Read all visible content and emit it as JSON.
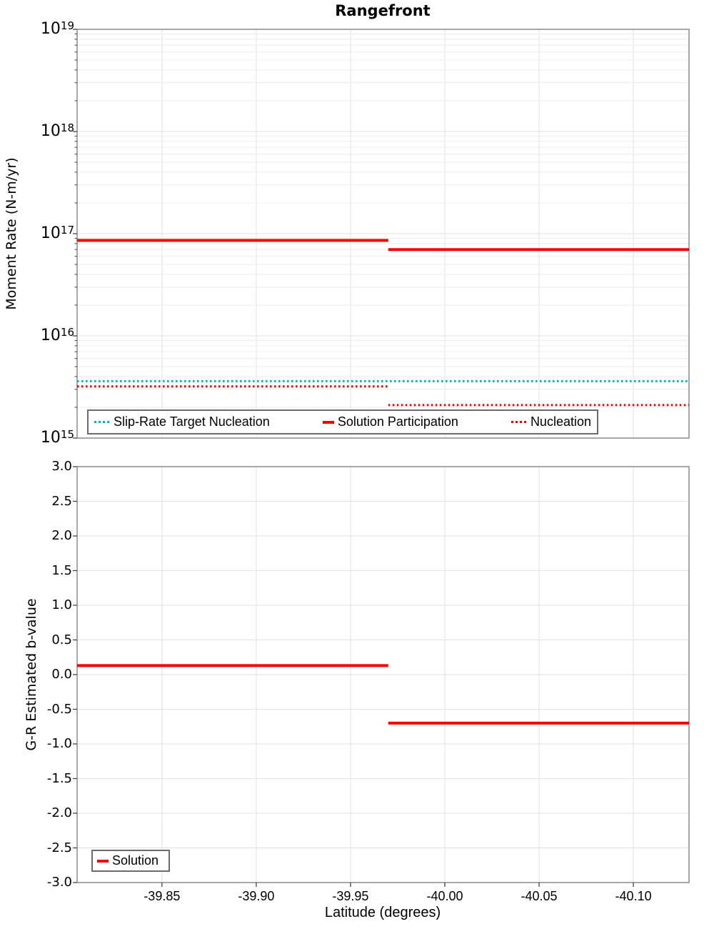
{
  "title": "Rangefront",
  "axes": {
    "top": {
      "ylabel": "Moment Rate (N-m/yr)",
      "yscale": "log",
      "ytick_labels": [
        {
          "base": "10",
          "exp": "19"
        },
        {
          "base": "10",
          "exp": "18"
        },
        {
          "base": "10",
          "exp": "17"
        },
        {
          "base": "10",
          "exp": "16"
        },
        {
          "base": "10",
          "exp": "15"
        }
      ]
    },
    "bottom": {
      "ylabel": "G-R Estimated b-value",
      "xlabel": "Latitude (degrees)",
      "ytick_labels": [
        "3.0",
        "2.5",
        "2.0",
        "1.5",
        "1.0",
        "0.5",
        "0.0",
        "-0.5",
        "-1.0",
        "-1.5",
        "-2.0",
        "-2.5",
        "-3.0"
      ],
      "xtick_labels": [
        "-39.85",
        "-39.90",
        "-39.95",
        "-40.00",
        "-40.05",
        "-40.10"
      ]
    }
  },
  "colors": {
    "red": "#f80000",
    "teal": "#00b9bd",
    "grid_minor": "#ececec",
    "grid_major": "#e2e2e2",
    "frame": "#8b8b8b",
    "tick": "#444444",
    "legend_border": "#6b6b6b"
  },
  "chart_data": [
    {
      "type": "line",
      "title": "Rangefront",
      "ylabel": "Moment Rate (N-m/yr)",
      "yscale": "log",
      "ylim": [
        1000000000000000.0,
        1e+19
      ],
      "xlim": [
        -39.805,
        -40.1295
      ],
      "x_reversed": true,
      "xticks": [
        -39.85,
        -39.9,
        -39.95,
        -40.0,
        -40.05,
        -40.1
      ],
      "grid": true,
      "legend_position": "bottom-inside",
      "series": [
        {
          "name": "Slip-Rate Target Nucleation",
          "color": "#00b9bd",
          "style": "dotted",
          "steps": [
            {
              "x0": -39.805,
              "x1": -40.1295,
              "y": 3600000000000000.0
            }
          ]
        },
        {
          "name": "Solution Participation",
          "color": "#f80000",
          "style": "solid",
          "steps": [
            {
              "x0": -39.805,
              "x1": -39.97,
              "y": 8.6e+16
            },
            {
              "x0": -39.97,
              "x1": -40.1295,
              "y": 7e+16
            }
          ]
        },
        {
          "name": "Nucleation",
          "color": "#f80000",
          "style": "dotted",
          "steps": [
            {
              "x0": -39.805,
              "x1": -39.97,
              "y": 3200000000000000.0
            },
            {
              "x0": -39.97,
              "x1": -40.1295,
              "y": 2100000000000000.0
            }
          ]
        }
      ]
    },
    {
      "type": "line",
      "ylabel": "G-R Estimated b-value",
      "xlabel": "Latitude (degrees)",
      "ylim": [
        -3.0,
        3.0
      ],
      "yticks": [
        3.0,
        2.5,
        2.0,
        1.5,
        1.0,
        0.5,
        0.0,
        -0.5,
        -1.0,
        -1.5,
        -2.0,
        -2.5,
        -3.0
      ],
      "xlim": [
        -39.805,
        -40.1295
      ],
      "x_reversed": true,
      "xticks": [
        -39.85,
        -39.9,
        -39.95,
        -40.0,
        -40.05,
        -40.1
      ],
      "grid": true,
      "legend_position": "bottom-left-inside",
      "series": [
        {
          "name": "Solution",
          "color": "#f80000",
          "style": "solid",
          "steps": [
            {
              "x0": -39.805,
              "x1": -39.97,
              "y": 0.13
            },
            {
              "x0": -39.97,
              "x1": -40.1295,
              "y": -0.7
            }
          ]
        }
      ]
    }
  ]
}
